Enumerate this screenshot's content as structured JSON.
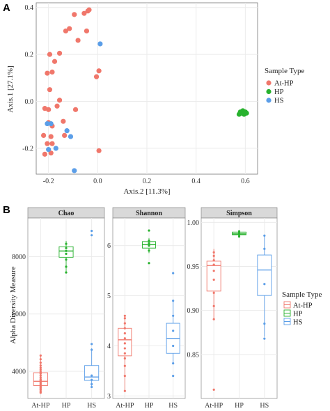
{
  "colors": {
    "At-HP": "#f0776b",
    "HP": "#28b22e",
    "HS": "#5b9ee8",
    "grid": "#ebebeb",
    "strip_bg": "#d9d9d9"
  },
  "panel_a": {
    "letter": "A",
    "legend_title": "Sample Type",
    "legend": [
      "At-HP",
      "HP",
      "HS"
    ]
  },
  "panel_b": {
    "letter": "B",
    "y_label": "Alpha Diversity Measure",
    "legend_title": "Sample Type",
    "legend": [
      "At-HP",
      "HP",
      "HS"
    ]
  },
  "chart_data": [
    {
      "type": "scatter",
      "xlabel": "Axis.2 [11.3%]",
      "ylabel": "Axis.1 [27.1%]",
      "xlim": [
        -0.25,
        0.65
      ],
      "ylim": [
        -0.31,
        0.42
      ],
      "x_ticks": [
        -0.2,
        0.0,
        0.2,
        0.4,
        0.6
      ],
      "x_tick_labels": [
        "-0.2",
        "0.0",
        "0.2",
        "0.4",
        "0.6"
      ],
      "y_ticks": [
        -0.2,
        0.0,
        0.2,
        0.4
      ],
      "y_tick_labels": [
        "-0.2",
        "0.0",
        "0.2",
        "0.4"
      ],
      "grid": true,
      "legend_position": "right",
      "series": [
        {
          "name": "At-HP",
          "points": [
            [
              -0.095,
              0.37
            ],
            [
              -0.055,
              0.375
            ],
            [
              -0.035,
              0.39
            ],
            [
              -0.04,
              0.385
            ],
            [
              -0.13,
              0.3
            ],
            [
              -0.115,
              0.31
            ],
            [
              -0.045,
              0.3
            ],
            [
              -0.08,
              0.26
            ],
            [
              -0.195,
              0.2
            ],
            [
              -0.155,
              0.205
            ],
            [
              -0.175,
              0.17
            ],
            [
              -0.205,
              0.12
            ],
            [
              -0.185,
              0.125
            ],
            [
              0.005,
              0.13
            ],
            [
              -0.005,
              0.105
            ],
            [
              -0.195,
              0.05
            ],
            [
              -0.155,
              0.005
            ],
            [
              -0.215,
              -0.03
            ],
            [
              -0.2,
              -0.035
            ],
            [
              -0.165,
              -0.02
            ],
            [
              -0.09,
              -0.035
            ],
            [
              -0.2,
              -0.09
            ],
            [
              -0.185,
              -0.105
            ],
            [
              -0.14,
              -0.085
            ],
            [
              -0.22,
              -0.145
            ],
            [
              -0.19,
              -0.15
            ],
            [
              -0.135,
              -0.145
            ],
            [
              -0.185,
              -0.18
            ],
            [
              -0.205,
              -0.18
            ],
            [
              -0.19,
              -0.22
            ],
            [
              -0.215,
              -0.225
            ],
            [
              0.005,
              -0.21
            ]
          ]
        },
        {
          "name": "HP",
          "points": [
            [
              0.58,
              -0.045
            ],
            [
              0.59,
              -0.04
            ],
            [
              0.6,
              -0.045
            ],
            [
              0.575,
              -0.055
            ],
            [
              0.595,
              -0.055
            ],
            [
              0.585,
              -0.05
            ],
            [
              0.605,
              -0.05
            ]
          ]
        },
        {
          "name": "HS",
          "points": [
            [
              0.01,
              0.245
            ],
            [
              -0.19,
              -0.095
            ],
            [
              -0.205,
              -0.095
            ],
            [
              -0.125,
              -0.125
            ],
            [
              -0.11,
              -0.15
            ],
            [
              -0.2,
              -0.205
            ],
            [
              -0.17,
              -0.2
            ],
            [
              -0.095,
              -0.295
            ]
          ]
        }
      ]
    },
    {
      "type": "box",
      "facet": "Chao",
      "categories": [
        "At-HP",
        "HP",
        "HS"
      ],
      "ylim": [
        3050,
        9350
      ],
      "y_ticks": [
        4000,
        6000,
        8000
      ],
      "y_tick_labels": [
        "4000",
        "6000",
        "8000"
      ],
      "boxes": [
        {
          "group": "At-HP",
          "min": 3250,
          "q1": 3500,
          "median": 3650,
          "q3": 3950,
          "max": 4550,
          "points": [
            3250,
            3300,
            3350,
            3380,
            3420,
            3450,
            3480,
            3520,
            3560,
            3600,
            3640,
            3680,
            3720,
            3780,
            3850,
            3920,
            3980,
            4050,
            4120,
            4200,
            4300,
            4420,
            4550
          ]
        },
        {
          "group": "HP",
          "min": 7450,
          "q1": 7980,
          "median": 8200,
          "q3": 8350,
          "max": 8550,
          "points": [
            7450,
            7650,
            7900,
            8100,
            8200,
            8300,
            8450
          ]
        },
        {
          "group": "HS",
          "min": 3450,
          "q1": 3680,
          "median": 3800,
          "q3": 4200,
          "max": 4800,
          "points": [
            3450,
            3550,
            3700,
            3850,
            4750,
            4950,
            8750,
            8900
          ]
        }
      ]
    },
    {
      "type": "box",
      "facet": "Shannon",
      "categories": [
        "At-HP",
        "HP",
        "HS"
      ],
      "ylim": [
        2.95,
        6.55
      ],
      "y_ticks": [
        3,
        4,
        5,
        6
      ],
      "y_tick_labels": [
        "3",
        "4",
        "5",
        "6"
      ],
      "boxes": [
        {
          "group": "At-HP",
          "min": 3.1,
          "q1": 3.8,
          "median": 4.12,
          "q3": 4.35,
          "max": 4.6,
          "points": [
            3.1,
            3.4,
            3.6,
            3.75,
            3.85,
            3.95,
            4.05,
            4.15,
            4.25,
            4.35,
            4.45,
            4.55,
            4.6
          ]
        },
        {
          "group": "HP",
          "min": 5.85,
          "q1": 5.95,
          "median": 6.02,
          "q3": 6.08,
          "max": 6.15,
          "points": [
            5.65,
            5.9,
            6.0,
            6.05,
            6.1,
            6.3
          ]
        },
        {
          "group": "HS",
          "min": 3.65,
          "q1": 3.85,
          "median": 4.15,
          "q3": 4.45,
          "max": 4.9,
          "points": [
            3.4,
            3.65,
            4.0,
            4.3,
            4.6,
            4.9,
            5.45
          ]
        }
      ]
    },
    {
      "type": "box",
      "facet": "Simpson",
      "categories": [
        "At-HP",
        "HP",
        "HS"
      ],
      "ylim": [
        0.8,
        1.005
      ],
      "y_ticks": [
        0.85,
        0.9,
        0.95,
        1.0
      ],
      "y_tick_labels": [
        "0.85",
        "0.90",
        "0.95",
        "1.00"
      ],
      "boxes": [
        {
          "group": "At-HP",
          "min": 0.89,
          "q1": 0.922,
          "median": 0.951,
          "q3": 0.956,
          "max": 0.97,
          "points": [
            0.81,
            0.89,
            0.905,
            0.92,
            0.935,
            0.945,
            0.952,
            0.957,
            0.962,
            0.966
          ]
        },
        {
          "group": "HP",
          "min": 0.984,
          "q1": 0.986,
          "median": 0.987,
          "q3": 0.989,
          "max": 0.991,
          "points": [
            0.984,
            0.986,
            0.988,
            0.99
          ]
        },
        {
          "group": "HS",
          "min": 0.87,
          "q1": 0.917,
          "median": 0.946,
          "q3": 0.963,
          "max": 0.985,
          "points": [
            0.868,
            0.885,
            0.93,
            0.97,
            0.985
          ]
        }
      ]
    }
  ]
}
